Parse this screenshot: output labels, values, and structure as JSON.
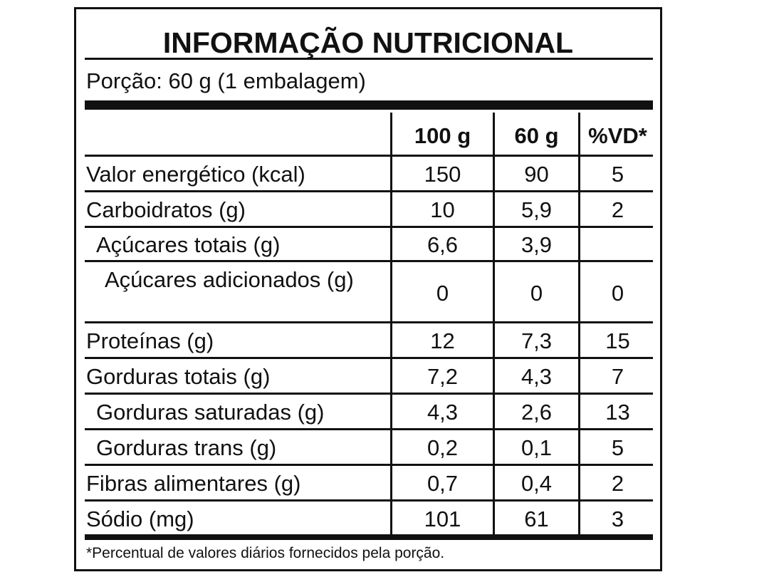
{
  "label": {
    "title": "INFORMAÇÃO NUTRICIONAL",
    "portion": "Porção: 60 g (1 embalagem)",
    "columns": [
      "100 g",
      "60 g",
      "%VD*"
    ],
    "rows": [
      {
        "name": "Valor energético (kcal)",
        "v100": "150",
        "v60": "90",
        "vd": "5"
      },
      {
        "name": "Carboidratos (g)",
        "v100": "10",
        "v60": "5,9",
        "vd": "2"
      },
      {
        "name": "Açúcares totais (g)",
        "v100": "6,6",
        "v60": "3,9",
        "vd": ""
      },
      {
        "name": "Açúcares adicionados (g)",
        "v100": "0",
        "v60": "0",
        "vd": "0"
      },
      {
        "name": "Proteínas (g)",
        "v100": "12",
        "v60": "7,3",
        "vd": "15"
      },
      {
        "name": "Gorduras totais (g)",
        "v100": "7,2",
        "v60": "4,3",
        "vd": "7"
      },
      {
        "name": "Gorduras saturadas (g)",
        "v100": "4,3",
        "v60": "2,6",
        "vd": "13"
      },
      {
        "name": "Gorduras trans (g)",
        "v100": "0,2",
        "v60": "0,1",
        "vd": "5"
      },
      {
        "name": "Fibras alimentares (g)",
        "v100": "0,7",
        "v60": "0,4",
        "vd": "2"
      },
      {
        "name": "Sódio (mg)",
        "v100": "101",
        "v60": "61",
        "vd": "3"
      }
    ],
    "footnote": "*Percentual de valores diários fornecidos pela porção."
  }
}
